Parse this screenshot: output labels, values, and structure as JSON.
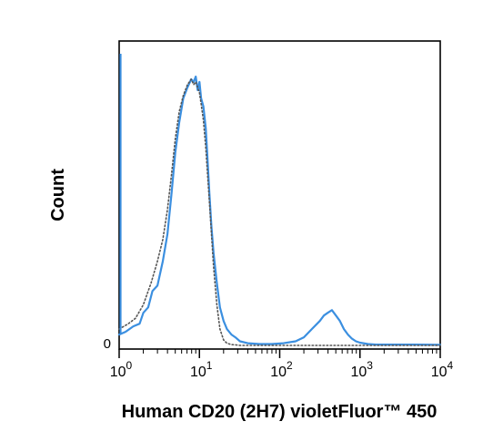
{
  "chart_data": {
    "type": "line",
    "title": "",
    "xlabel": "Human CD20 (2H7) violetFluor™ 450",
    "ylabel": "Count",
    "x_scale": "log",
    "xlim": [
      1,
      10000
    ],
    "ylim": [
      0,
      100
    ],
    "grid": false,
    "legend": "none",
    "y_tick_labels": [
      {
        "value": 0,
        "label": "0"
      }
    ],
    "x_tick_labels": [
      {
        "value": 1,
        "base": "10",
        "exp": "0"
      },
      {
        "value": 10,
        "base": "10",
        "exp": "1"
      },
      {
        "value": 100,
        "base": "10",
        "exp": "2"
      },
      {
        "value": 1000,
        "base": "10",
        "exp": "3"
      },
      {
        "value": 10000,
        "base": "10",
        "exp": "4"
      }
    ],
    "series": [
      {
        "style": "solid",
        "color": "#3b8fe0",
        "x": [
          1,
          1.2,
          1.5,
          1.8,
          2.0,
          2.3,
          2.6,
          3.0,
          3.5,
          4.0,
          4.5,
          5.0,
          5.6,
          6.3,
          7.1,
          7.9,
          8.5,
          9.0,
          9.5,
          10.0,
          10.5,
          11.2,
          12.0,
          12.6,
          13.3,
          14.1,
          15.0,
          16.5,
          18.0,
          20.0,
          22.0,
          25.0,
          28.0,
          32.0,
          40.0,
          56.0,
          79.0,
          112.0,
          158.0,
          200.0,
          251.0,
          316.0,
          355.0,
          398.0,
          447.0,
          501.0,
          562.0,
          631.0,
          708.0,
          794.0,
          891.0,
          1000.0,
          1260.0,
          1585.0,
          2000.0,
          3162.0,
          5012.0,
          10000.0
        ],
        "y": [
          4,
          5,
          7,
          8,
          12,
          14,
          20,
          22,
          31,
          41,
          56,
          71,
          82,
          91,
          95,
          98,
          97,
          99,
          94,
          97,
          91,
          88,
          80,
          69,
          56,
          44,
          34,
          23,
          14,
          9,
          6,
          4,
          3,
          1.5,
          0.8,
          0.5,
          0.5,
          0.8,
          1.5,
          3,
          6,
          9,
          11,
          12,
          13,
          11,
          9,
          6,
          4,
          2.5,
          1.5,
          1,
          0.5,
          0.3,
          0.3,
          0.3,
          0.3,
          0.2
        ]
      },
      {
        "style": "dotted",
        "color": "#555555",
        "x": [
          1,
          1.3,
          1.6,
          2.0,
          2.5,
          3.0,
          3.5,
          4.0,
          4.5,
          5.0,
          5.6,
          6.3,
          7.1,
          7.9,
          8.5,
          9.0,
          9.5,
          10.0,
          10.5,
          11.2,
          12.0,
          13.3,
          15.0,
          16.5,
          18.0,
          20.0,
          22.0,
          25.0,
          28.0,
          32.0,
          40.0,
          56.0,
          100.0,
          1000.0,
          10000.0
        ],
        "y": [
          6,
          8,
          10,
          15,
          23,
          31,
          39,
          50,
          63,
          76,
          86,
          92,
          96,
          98,
          96,
          97,
          95,
          93,
          89,
          83,
          73,
          53,
          29,
          15,
          6,
          2,
          0.8,
          0.3,
          0.2,
          0,
          0,
          0,
          0,
          0,
          0
        ]
      }
    ]
  }
}
